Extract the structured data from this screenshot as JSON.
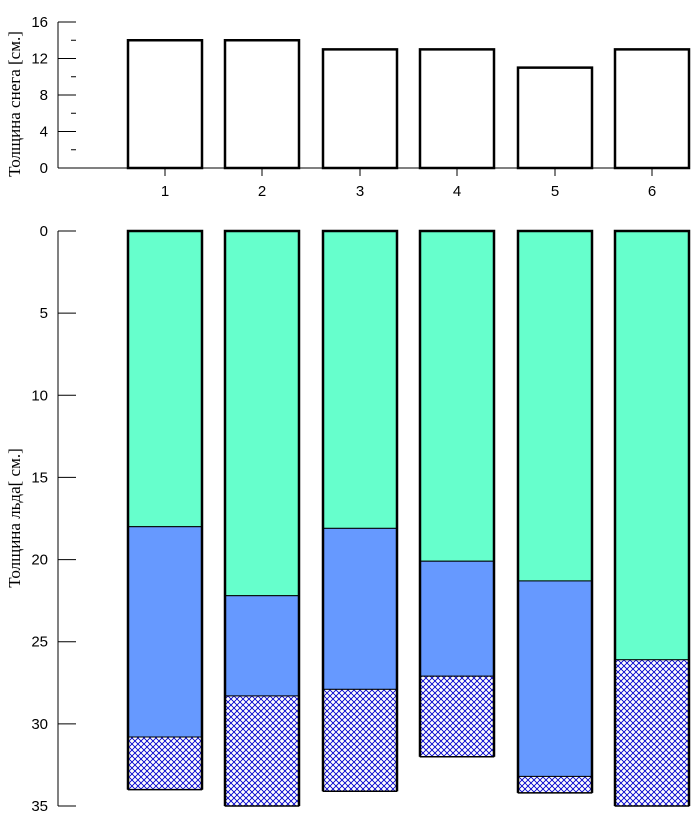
{
  "chart_data": [
    {
      "type": "bar",
      "ylabel": "Толщина снега [см.]",
      "categories": [
        "1",
        "2",
        "3",
        "4",
        "5",
        "6"
      ],
      "values": [
        14,
        14,
        13,
        13,
        11,
        13
      ],
      "ylim": [
        0,
        16
      ],
      "yticks": [
        "0",
        "4",
        "8",
        "12",
        "16"
      ],
      "colors": {
        "fill": "#ffffff",
        "stroke": "#000000"
      }
    },
    {
      "type": "bar",
      "stacked": true,
      "ylabel": "Толщина льда[ см.]",
      "categories": [
        "1",
        "2",
        "3",
        "4",
        "5",
        "6"
      ],
      "ylim": [
        0,
        35
      ],
      "y_inverted": true,
      "yticks": [
        "0",
        "5",
        "10",
        "15",
        "20",
        "25",
        "30",
        "35"
      ],
      "series": [
        {
          "values": [
            18,
            22.2,
            18.1,
            20.1,
            21.3,
            26.1
          ],
          "color": "#66ffcc",
          "pattern": "solid"
        },
        {
          "values": [
            12.8,
            6.1,
            9.8,
            7,
            11.9,
            0
          ],
          "color": "#6699ff",
          "pattern": "solid"
        },
        {
          "values": [
            3.2,
            6.7,
            6.2,
            4.9,
            1,
            8.9
          ],
          "color": "#0000cc",
          "pattern": "crosshatch"
        }
      ]
    }
  ]
}
